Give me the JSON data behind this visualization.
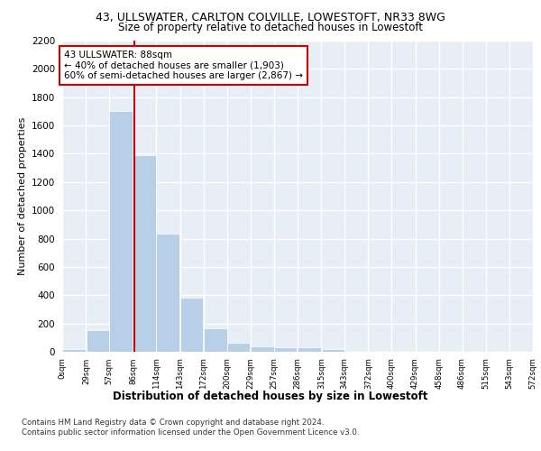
{
  "title1": "43, ULLSWATER, CARLTON COLVILLE, LOWESTOFT, NR33 8WG",
  "title2": "Size of property relative to detached houses in Lowestoft",
  "xlabel": "Distribution of detached houses by size in Lowestoft",
  "ylabel": "Number of detached properties",
  "bar_values": [
    20,
    155,
    1700,
    1390,
    835,
    385,
    165,
    65,
    40,
    30,
    30,
    20,
    0,
    0,
    0,
    0,
    0,
    0,
    0
  ],
  "bar_left_edges": [
    0,
    29,
    57,
    86,
    114,
    143,
    172,
    200,
    229,
    257,
    286,
    315,
    343,
    372,
    400,
    429,
    458,
    486,
    515
  ],
  "bar_width": 28.5,
  "bar_color": "#b8cfe8",
  "tick_labels": [
    "0sqm",
    "29sqm",
    "57sqm",
    "86sqm",
    "114sqm",
    "143sqm",
    "172sqm",
    "200sqm",
    "229sqm",
    "257sqm",
    "286sqm",
    "315sqm",
    "343sqm",
    "372sqm",
    "400sqm",
    "429sqm",
    "458sqm",
    "486sqm",
    "515sqm",
    "543sqm",
    "572sqm"
  ],
  "ylim": [
    0,
    2200
  ],
  "xlim": [
    0,
    572
  ],
  "property_sqm": 88,
  "property_line_color": "#cc0000",
  "annotation_line1": "43 ULLSWATER: 88sqm",
  "annotation_line2": "← 40% of detached houses are smaller (1,903)",
  "annotation_line3": "60% of semi-detached houses are larger (2,867) →",
  "annotation_box_color": "#cc0000",
  "footer1": "Contains HM Land Registry data © Crown copyright and database right 2024.",
  "footer2": "Contains public sector information licensed under the Open Government Licence v3.0.",
  "background_color": "#e8eef5",
  "grid_color": "#ffffff",
  "yticks": [
    0,
    200,
    400,
    600,
    800,
    1000,
    1200,
    1400,
    1600,
    1800,
    2000,
    2200
  ],
  "xtick_positions": [
    0,
    29,
    57,
    86,
    114,
    143,
    172,
    200,
    229,
    257,
    286,
    315,
    343,
    372,
    400,
    429,
    458,
    486,
    515,
    543,
    572
  ]
}
